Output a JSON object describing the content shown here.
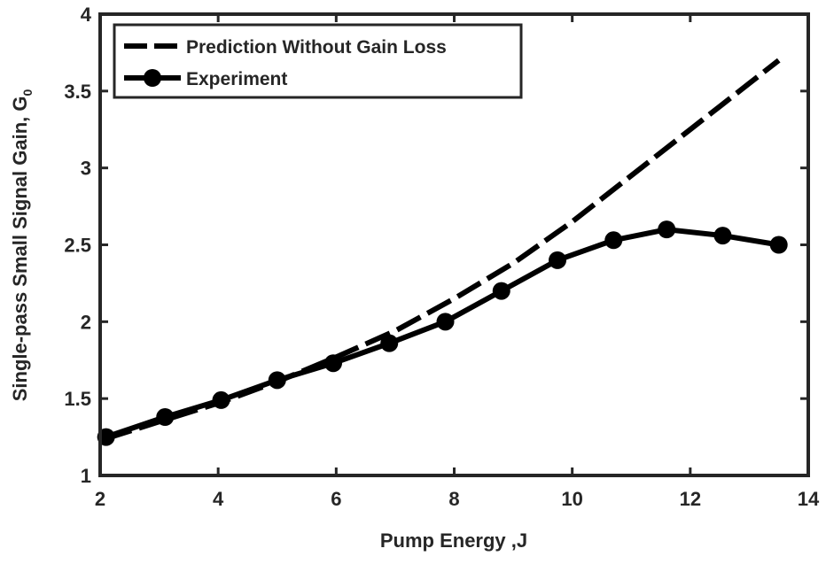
{
  "chart_data": {
    "type": "line",
    "title": "",
    "xlabel": "Pump Energy ,J",
    "ylabel": "Single-pass Small Signal Gain, G",
    "ylabel_subscript": "0",
    "xlim": [
      2,
      14
    ],
    "ylim": [
      1,
      4
    ],
    "xticks": [
      "2",
      "4",
      "6",
      "8",
      "10",
      "12",
      "14"
    ],
    "yticks": [
      "1",
      "1.5",
      "2",
      "2.5",
      "3",
      "3.5",
      "4"
    ],
    "grid": false,
    "legend_position": "top-left",
    "series": [
      {
        "name": "Prediction Without Gain Loss",
        "style": "dashed",
        "color": "#000000",
        "x": [
          2.1,
          3,
          4,
          5,
          6,
          7,
          8,
          9,
          10,
          11,
          12,
          12.5,
          13,
          13.5
        ],
        "y": [
          1.24,
          1.35,
          1.47,
          1.61,
          1.77,
          1.94,
          2.15,
          2.38,
          2.65,
          2.95,
          3.25,
          3.4,
          3.55,
          3.7
        ]
      },
      {
        "name": "Experiment",
        "style": "solid-circle-markers",
        "color": "#000000",
        "x": [
          2.1,
          3.1,
          4.05,
          5.0,
          5.95,
          6.9,
          7.85,
          8.8,
          9.75,
          10.7,
          11.6,
          12.55,
          13.5
        ],
        "y": [
          1.25,
          1.38,
          1.49,
          1.62,
          1.73,
          1.86,
          2.0,
          2.2,
          2.4,
          2.53,
          2.6,
          2.56,
          2.5
        ]
      }
    ]
  }
}
